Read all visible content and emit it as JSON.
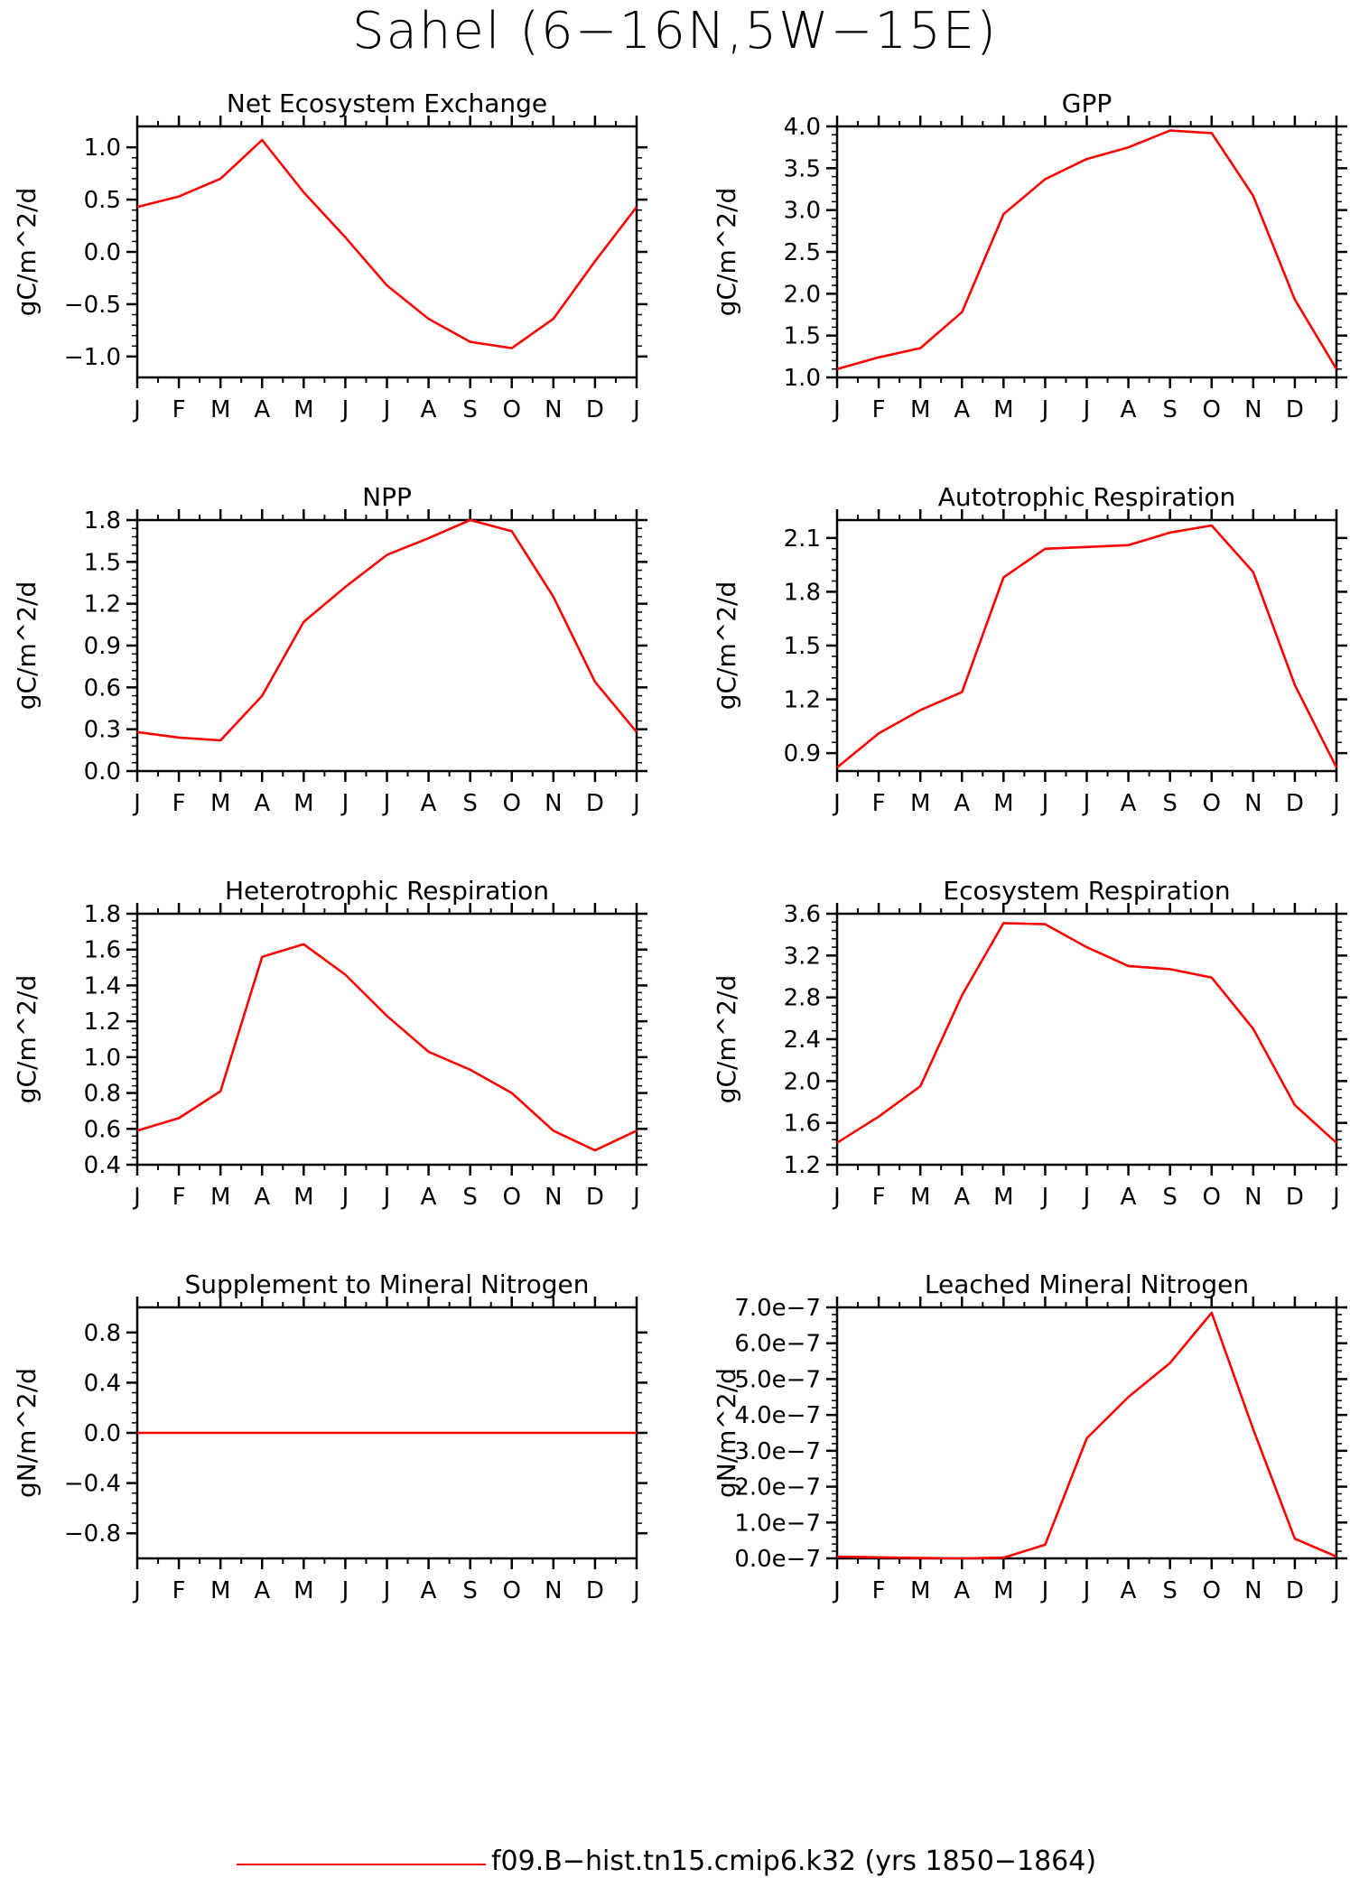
{
  "title": "Sahel (6−16N,5W−15E)",
  "legend": {
    "label": "f09.B−hist.tn15.cmip6.k32 (yrs 1850−1864)",
    "color": "#ff0000"
  },
  "months": [
    "J",
    "F",
    "M",
    "A",
    "M",
    "J",
    "J",
    "A",
    "S",
    "O",
    "N",
    "D",
    "J"
  ],
  "chart_data": [
    {
      "type": "line",
      "title": "Net Ecosystem Exchange",
      "ylabel": "gC/m^2/d",
      "ylim": [
        -1.2,
        1.2
      ],
      "yticks": [
        -1.0,
        -0.5,
        0.0,
        0.5,
        1.0
      ],
      "ytick_labels": [
        "−1.0",
        "−0.5",
        "0.0",
        "0.5",
        "1.0"
      ],
      "series": [
        {
          "values": [
            0.43,
            0.53,
            0.7,
            1.07,
            0.57,
            0.14,
            -0.32,
            -0.64,
            -0.86,
            -0.92,
            -0.64,
            -0.09,
            0.43
          ],
          "color": "#ff0000"
        }
      ]
    },
    {
      "type": "line",
      "title": "GPP",
      "ylabel": "gC/m^2/d",
      "ylim": [
        1.0,
        4.0
      ],
      "yticks": [
        1.0,
        1.5,
        2.0,
        2.5,
        3.0,
        3.5,
        4.0
      ],
      "ytick_labels": [
        "1.0",
        "1.5",
        "2.0",
        "2.5",
        "3.0",
        "3.5",
        "4.0"
      ],
      "series": [
        {
          "values": [
            1.1,
            1.24,
            1.35,
            1.78,
            2.95,
            3.37,
            3.61,
            3.75,
            3.95,
            3.92,
            3.17,
            1.93,
            1.1
          ],
          "color": "#ff0000"
        }
      ]
    },
    {
      "type": "line",
      "title": "NPP",
      "ylabel": "gC/m^2/d",
      "ylim": [
        0.0,
        1.8
      ],
      "yticks": [
        0.0,
        0.3,
        0.6,
        0.9,
        1.2,
        1.5,
        1.8
      ],
      "ytick_labels": [
        "0.0",
        "0.3",
        "0.6",
        "0.9",
        "1.2",
        "1.5",
        "1.8"
      ],
      "series": [
        {
          "values": [
            0.28,
            0.24,
            0.22,
            0.54,
            1.07,
            1.32,
            1.55,
            1.67,
            1.8,
            1.72,
            1.25,
            0.64,
            0.28
          ],
          "color": "#ff0000"
        }
      ]
    },
    {
      "type": "line",
      "title": "Autotrophic Respiration",
      "ylabel": "gC/m^2/d",
      "ylim": [
        0.8,
        2.2
      ],
      "yticks": [
        0.9,
        1.2,
        1.5,
        1.8,
        2.1
      ],
      "ytick_labels": [
        "0.9",
        "1.2",
        "1.5",
        "1.8",
        "2.1"
      ],
      "series": [
        {
          "values": [
            0.82,
            1.01,
            1.14,
            1.24,
            1.88,
            2.04,
            2.05,
            2.06,
            2.13,
            2.17,
            1.91,
            1.28,
            0.82
          ],
          "color": "#ff0000"
        }
      ]
    },
    {
      "type": "line",
      "title": "Heterotrophic Respiration",
      "ylabel": "gC/m^2/d",
      "ylim": [
        0.4,
        1.8
      ],
      "yticks": [
        0.4,
        0.6,
        0.8,
        1.0,
        1.2,
        1.4,
        1.6,
        1.8
      ],
      "ytick_labels": [
        "0.4",
        "0.6",
        "0.8",
        "1.0",
        "1.2",
        "1.4",
        "1.6",
        "1.8"
      ],
      "series": [
        {
          "values": [
            0.59,
            0.66,
            0.81,
            1.56,
            1.63,
            1.46,
            1.23,
            1.03,
            0.93,
            0.8,
            0.59,
            0.48,
            0.59
          ],
          "color": "#ff0000"
        }
      ]
    },
    {
      "type": "line",
      "title": "Ecosystem Respiration",
      "ylabel": "gC/m^2/d",
      "ylim": [
        1.2,
        3.6
      ],
      "yticks": [
        1.2,
        1.6,
        2.0,
        2.4,
        2.8,
        3.2,
        3.6
      ],
      "ytick_labels": [
        "1.2",
        "1.6",
        "2.0",
        "2.4",
        "2.8",
        "3.2",
        "3.6"
      ],
      "series": [
        {
          "values": [
            1.41,
            1.66,
            1.95,
            2.82,
            3.51,
            3.5,
            3.28,
            3.1,
            3.07,
            2.99,
            2.5,
            1.77,
            1.41
          ],
          "color": "#ff0000"
        }
      ]
    },
    {
      "type": "line",
      "title": "Supplement to Mineral Nitrogen",
      "ylabel": "gN/m^2/d",
      "ylim": [
        -1.0,
        1.0
      ],
      "yticks": [
        -0.8,
        -0.4,
        0.0,
        0.4,
        0.8
      ],
      "ytick_labels": [
        "−0.8",
        "−0.4",
        "0.0",
        "0.4",
        "0.8"
      ],
      "series": [
        {
          "values": [
            0,
            0,
            0,
            0,
            0,
            0,
            0,
            0,
            0,
            0,
            0,
            0,
            0
          ],
          "color": "#ff0000"
        }
      ]
    },
    {
      "type": "line",
      "title": "Leached Mineral Nitrogen",
      "ylabel": "gN/m^2/d",
      "ylim": [
        0.0,
        7e-07
      ],
      "yticks": [
        0.0,
        1e-07,
        2e-07,
        3e-07,
        4e-07,
        5e-07,
        6e-07,
        7e-07
      ],
      "ytick_labels": [
        "0.0e−7",
        "1.0e−7",
        "2.0e−7",
        "3.0e−7",
        "4.0e−7",
        "5.0e−7",
        "6.0e−7",
        "7.0e−7"
      ],
      "series": [
        {
          "values": [
            5e-09,
            3e-09,
            1e-09,
            0.0,
            2e-09,
            3.8e-08,
            3.35e-07,
            4.5e-07,
            5.45e-07,
            6.85e-07,
            3.6e-07,
            5.5e-08,
            5e-09
          ],
          "color": "#ff0000"
        }
      ]
    }
  ]
}
